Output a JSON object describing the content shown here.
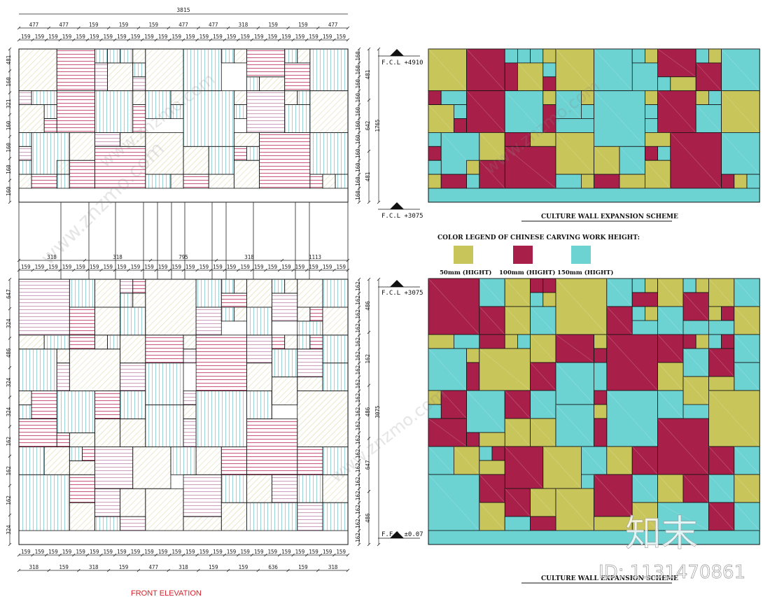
{
  "colors": {
    "yellow": "#C8C55A",
    "crimson": "#A8204A",
    "cyan": "#6CD2D2",
    "hatch_yellow": "#D9D5A0",
    "hatch_pink": "#C792B6",
    "hatch_red": "#C2406A",
    "hatch_cyan": "#8CCFD4",
    "title_red": "#D2232A"
  },
  "titles": {
    "front_elevation": "FRONT ELEVATION",
    "expansion_top": "CULTURE WALL EXPANSION SCHEME",
    "expansion_bottom": "CULTURE WALL EXPANSION SCHEME",
    "legend_title": "COLOR LEGEND OF CHINESE CARVING WORK HEIGHT:"
  },
  "legend": [
    {
      "label": "50mm (HIGHT)",
      "color": "#C8C55A"
    },
    {
      "label": "100mm (HIGHT)",
      "color": "#A8204A"
    },
    {
      "label": "150mm (HIGHT)",
      "color": "#6CD2D2"
    }
  ],
  "levels": {
    "top": "F.C.L +4910",
    "mid_upper": "F.C.L +3075",
    "mid_lower": "F.C.L +3075",
    "floor": "F.F.L ±0.07"
  },
  "dimensions": {
    "overall_width": "3815",
    "top_row1": [
      "477",
      "477",
      "159",
      "159",
      "159",
      "477",
      "477",
      "318",
      "159",
      "159",
      "477"
    ],
    "top_row2": [
      "159",
      "159",
      "159",
      "159",
      "159",
      "159",
      "159",
      "159",
      "159",
      "159",
      "159",
      "159",
      "159",
      "159",
      "159",
      "159",
      "159",
      "159",
      "159",
      "159",
      "159",
      "159",
      "159",
      "159"
    ],
    "mid_row1": [
      "318",
      "318",
      "795",
      "318",
      "1113"
    ],
    "mid_row2": [
      "159",
      "159",
      "159",
      "159",
      "159",
      "159",
      "159",
      "159",
      "159",
      "159",
      "159",
      "159",
      "159",
      "159",
      "159",
      "159",
      "159",
      "159",
      "159",
      "159",
      "159",
      "159",
      "159",
      "159"
    ],
    "bottom_row1": [
      "159",
      "159",
      "159",
      "159",
      "159",
      "159",
      "159",
      "159",
      "159",
      "159",
      "159",
      "159",
      "159",
      "159",
      "159",
      "159",
      "159",
      "159",
      "159",
      "159",
      "159",
      "159",
      "159",
      "159"
    ],
    "bottom_row2": [
      "318",
      "159",
      "318",
      "159",
      "477",
      "318",
      "159",
      "159",
      "636",
      "159",
      "318"
    ],
    "upper_left": [
      "481",
      "160",
      "321",
      "160",
      "160",
      "160",
      "160"
    ],
    "upper_right_a": [
      "160",
      "160",
      "160",
      "160",
      "160",
      "160",
      "160",
      "160",
      "160",
      "160",
      "160"
    ],
    "upper_right_b": [
      "481",
      "642",
      "481"
    ],
    "upper_total": "1765",
    "lower_left": [
      "647",
      "324",
      "486",
      "324",
      "324",
      "162",
      "162",
      "162",
      "324"
    ],
    "lower_right_a": [
      "162",
      "162",
      "162",
      "162",
      "162",
      "162",
      "162",
      "162",
      "162",
      "162",
      "162",
      "162",
      "162",
      "162",
      "162",
      "162",
      "162",
      "162",
      "162"
    ],
    "lower_right_b": [
      "486",
      "162",
      "486",
      "647",
      "486"
    ],
    "lower_total": "3075"
  },
  "watermark": {
    "site": "www.znzmo.com",
    "brand": "知末",
    "id": "ID: 1131470861"
  }
}
